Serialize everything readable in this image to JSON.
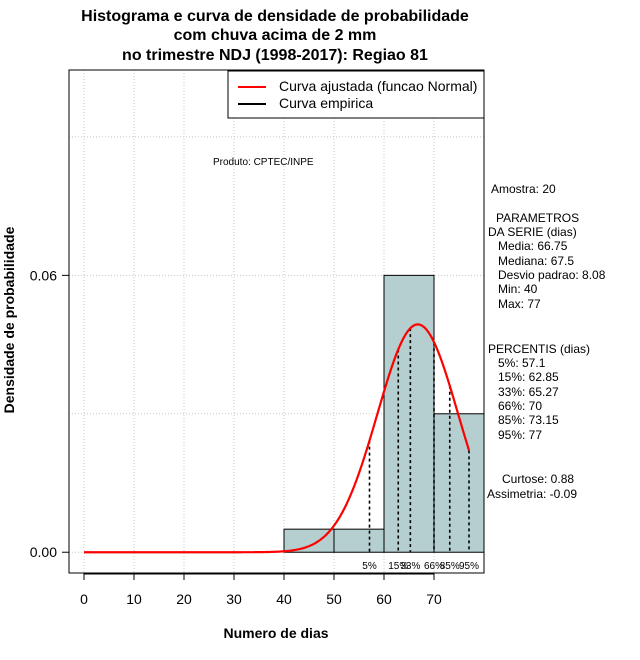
{
  "chart_data": {
    "type": "histogram",
    "title": [
      "Histograma e curva de densidade de probabilidade",
      "com chuva acima de 2 mm",
      "no trimestre NDJ (1998-2017): Regiao 81"
    ],
    "xlabel": "Numero de dias",
    "ylabel": "Densidade de probabilidade",
    "xlim": [
      -3,
      80
    ],
    "ylim": [
      -0.0045,
      0.1045
    ],
    "x_ticks": [
      0,
      10,
      20,
      30,
      40,
      50,
      60,
      70
    ],
    "y_ticks": [
      0.0,
      0.06
    ],
    "y_tick_labels": [
      "0.00",
      "0.06"
    ],
    "bins": [
      {
        "from": 40,
        "to": 50,
        "density": 0.005
      },
      {
        "from": 50,
        "to": 60,
        "density": 0.005
      },
      {
        "from": 60,
        "to": 70,
        "density": 0.06
      },
      {
        "from": 70,
        "to": 80,
        "density": 0.03
      }
    ],
    "normal_fit": {
      "mean": 66.75,
      "sd": 8.08,
      "x_from": 0,
      "x_to": 77
    },
    "percentile_lines": [
      {
        "label": "5%",
        "x": 57.1
      },
      {
        "label": "15%",
        "x": 62.85
      },
      {
        "label": "33%",
        "x": 65.27
      },
      {
        "label": "66%",
        "x": 70
      },
      {
        "label": "85%",
        "x": 73.15
      },
      {
        "label": "95%",
        "x": 77
      }
    ],
    "legend": [
      {
        "label": "Curva ajustada (funcao Normal)",
        "color": "#ff0000"
      },
      {
        "label": "Curva empirica",
        "color": "#000000"
      }
    ],
    "bar_color": "#b5cfd0",
    "grid": true
  },
  "credit": "Produto: CPTEC/INPE",
  "stats": {
    "sample": "Amostra: 20",
    "params_title_1": "PARAMETROS",
    "params_title_2": "DA SERIE (dias)",
    "mean": "Media: 66.75",
    "median": "Mediana: 67.5",
    "sd": "Desvio padrao: 8.08",
    "min": "Min: 40",
    "max": "Max: 77",
    "pct_title": "PERCENTIS (dias)",
    "p5": "5%: 57.1",
    "p15": "15%: 62.85",
    "p33": "33%: 65.27",
    "p66": "66%: 70",
    "p85": "85%: 73.15",
    "p95": "95%: 77",
    "kurtosis": "Curtose: 0.88",
    "skewness": "Assimetria: -0.09"
  }
}
